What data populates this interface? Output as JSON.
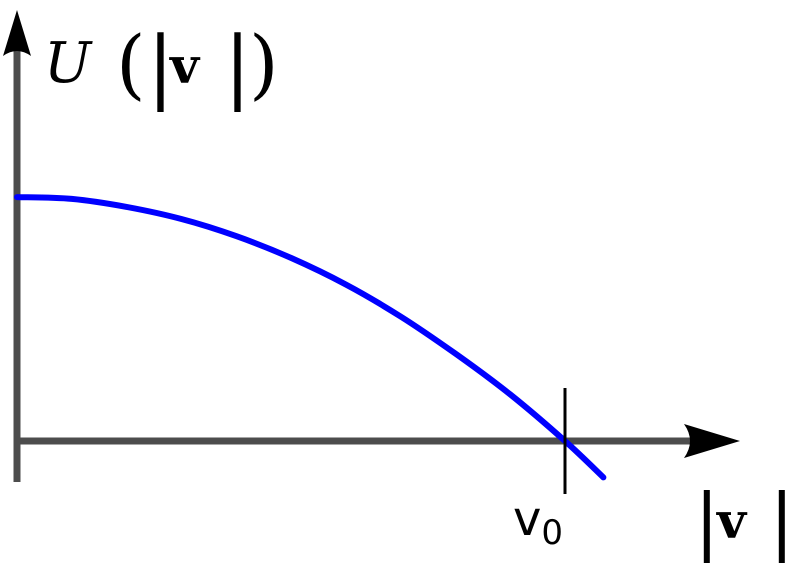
{
  "chart_data": {
    "type": "line",
    "ylabel": {
      "function": "U",
      "open": "(",
      "bar_left": "|",
      "var": "v",
      "bar_right": "|",
      "close": ")"
    },
    "xlabel": {
      "bar_left": "|",
      "var": "v",
      "bar_right": "|"
    },
    "tick_label": {
      "base": "v",
      "sub": "0"
    },
    "tick_x": 1.0,
    "xlim": [
      0,
      1.3
    ],
    "ylim": [
      -0.2,
      1.0
    ],
    "series": [
      {
        "values": [
          {
            "x": 0.0,
            "y": 0.67
          },
          {
            "x": 0.1,
            "y": 0.665
          },
          {
            "x": 0.2,
            "y": 0.643
          },
          {
            "x": 0.3,
            "y": 0.61
          },
          {
            "x": 0.4,
            "y": 0.563
          },
          {
            "x": 0.5,
            "y": 0.503
          },
          {
            "x": 0.6,
            "y": 0.43
          },
          {
            "x": 0.7,
            "y": 0.342
          },
          {
            "x": 0.8,
            "y": 0.24
          },
          {
            "x": 0.9,
            "y": 0.128
          },
          {
            "x": 1.0,
            "y": 0.0
          },
          {
            "x": 1.07,
            "y": -0.1
          }
        ]
      }
    ],
    "colors": {
      "curve": "#0000ff",
      "axes": "#4d4d4d",
      "tick": "#000000",
      "text": "#000000"
    }
  }
}
